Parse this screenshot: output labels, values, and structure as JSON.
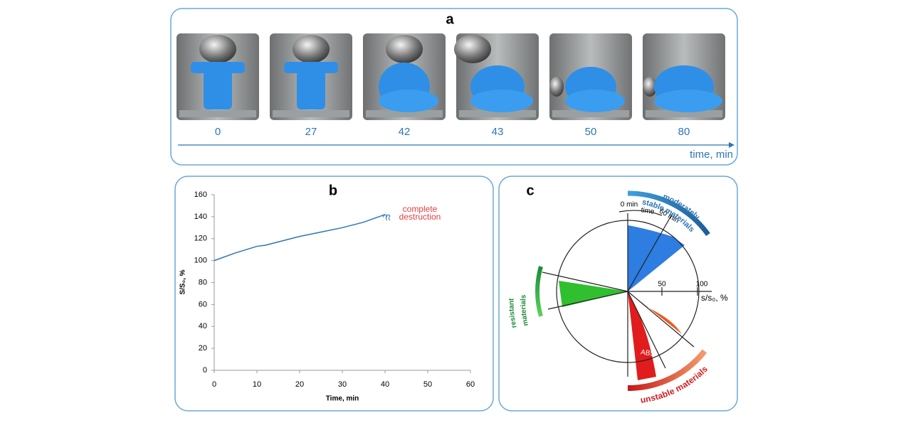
{
  "panel_a": {
    "label": "a",
    "times": [
      0,
      27,
      42,
      43,
      50,
      80
    ],
    "axis_label": "time, min"
  },
  "chart_data": {
    "type": "line",
    "label": "b",
    "ylabel": "S/S₀, %",
    "xlabel": "Time, min",
    "x": [
      0,
      5,
      10,
      12,
      15,
      20,
      25,
      30,
      35,
      40
    ],
    "values": [
      100,
      107,
      113,
      114,
      117,
      122,
      126,
      130,
      135,
      142
    ],
    "color": "#2e75b6",
    "xlim": [
      0,
      60
    ],
    "xticks": [
      0,
      10,
      20,
      30,
      40,
      50,
      60
    ],
    "ylim": [
      0,
      160
    ],
    "yticks": [
      0,
      20,
      40,
      60,
      80,
      100,
      120,
      140,
      160
    ],
    "annotation": [
      "complete",
      "destruction"
    ]
  },
  "panel_c": {
    "label": "c",
    "moderate": [
      "moderately",
      "stable materials"
    ],
    "resistant": [
      "resistant",
      "materials"
    ],
    "unstable": "unstable  materials",
    "start": "0 min",
    "time": "time",
    "end": "60 min",
    "scale_ticks": [
      50,
      100
    ],
    "scale_label": "s/s₀, %",
    "abs": "ABS"
  }
}
